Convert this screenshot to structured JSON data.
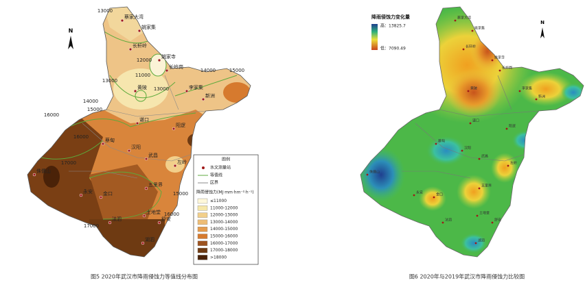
{
  "figure5": {
    "caption": "图5  2020年武汉市降雨侵蚀力等值线分布图",
    "legend": {
      "title": "图例",
      "station": "水文测量站",
      "isoline": "等值线",
      "boundary": "区界",
      "scale_title": "降雨侵蚀力(MJ·mm·hm⁻²·h⁻¹)",
      "classes": [
        "≤11000",
        "11000-12000",
        "12000-13000",
        "13000-14000",
        "14000-15000",
        "15000-16000",
        "16000-17000",
        "17000-18000",
        ">18000"
      ]
    },
    "contour_labels": [
      "13000",
      "12000",
      "11000",
      "13000",
      "13000",
      "14000",
      "15000",
      "14000",
      "15000",
      "16000",
      "17000",
      "16000",
      "15000",
      "16000",
      "17000"
    ]
  },
  "figure6": {
    "caption": "图6  2020年与2019年武汉市降雨侵蚀力比较图",
    "legend": {
      "title": "降雨侵蚀力变化量",
      "high": "高：13825.7",
      "low": "低：7090.49"
    }
  },
  "compass": "N",
  "places": [
    "蔡家大湾",
    "姚家集",
    "长轩岭",
    "姚家寺",
    "长岭岗",
    "黄陂",
    "李家集",
    "新洲",
    "谌口",
    "阳逻",
    "蔡甸",
    "汉阳",
    "武昌",
    "左岭",
    "五里界",
    "金口",
    "侏儒山",
    "永安",
    "土地堂",
    "法泗",
    "舒安",
    "湖泗"
  ]
}
